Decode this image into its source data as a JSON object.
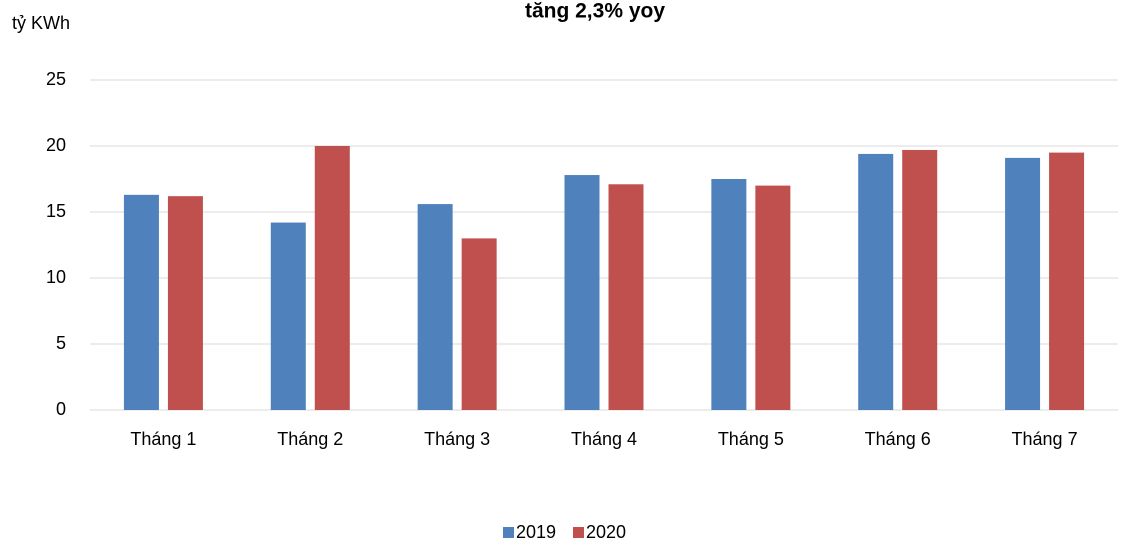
{
  "chart_data": {
    "type": "bar",
    "title": "tăng 2,3% yoy",
    "y_label": "tỷ KWh",
    "categories": [
      "Tháng 1",
      "Tháng 2",
      "Tháng 3",
      "Tháng 4",
      "Tháng 5",
      "Tháng 6",
      "Tháng 7"
    ],
    "series": [
      {
        "name": "2019",
        "color": "#4f81bd",
        "values": [
          16.3,
          14.2,
          15.6,
          17.8,
          17.5,
          19.4,
          19.1
        ]
      },
      {
        "name": "2020",
        "color": "#c0504d",
        "values": [
          16.2,
          20.0,
          13.0,
          17.1,
          17.0,
          19.7,
          19.5
        ]
      }
    ],
    "ylim": [
      0,
      25
    ],
    "yticks": [
      0,
      5,
      10,
      15,
      20,
      25
    ],
    "grid": true,
    "legend": "bottom"
  }
}
